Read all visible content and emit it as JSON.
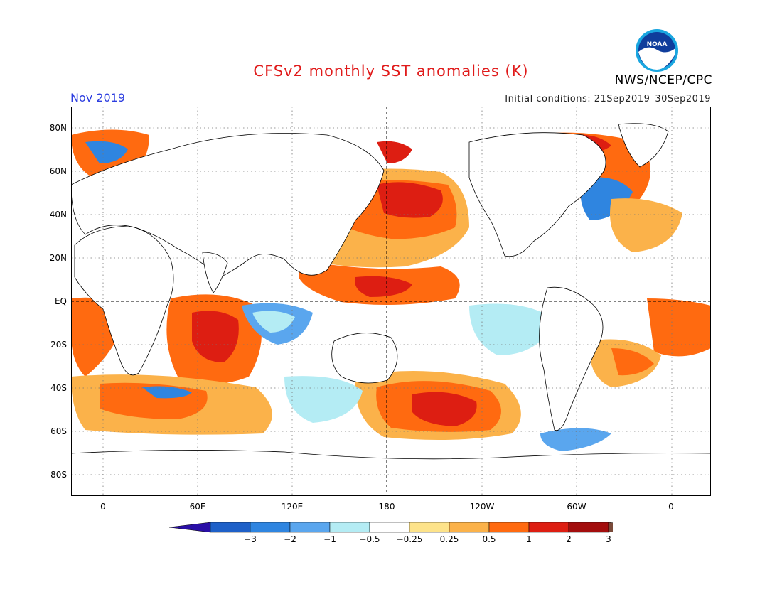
{
  "header": {
    "title": "CFSv2 monthly SST anomalies (K)",
    "month": "Nov 2019",
    "initial_conditions": "Initial conditions: 21Sep2019–30Sep2019",
    "agency": "NWS/NCEP/CPC",
    "logo_text": "NOAA"
  },
  "map": {
    "lat_labels": [
      "80N",
      "60N",
      "40N",
      "20N",
      "EQ",
      "20S",
      "40S",
      "60S",
      "80S"
    ],
    "lon_labels": [
      "0",
      "60E",
      "120E",
      "180",
      "120W",
      "60W",
      "0"
    ]
  },
  "colorbar": {
    "labels": [
      "−3",
      "−2",
      "−1",
      "−0.5",
      "−0.25",
      "0.25",
      "0.5",
      "1",
      "2",
      "3"
    ],
    "colors": {
      "below_m3": "#2a0fa6",
      "m3_m2": "#1e60c8",
      "m2_m1": "#2f85e0",
      "m1_m05": "#5aa6ee",
      "m05_m025": "#b4ecf4",
      "neutral": "#ffffff",
      "p025_p05": "#fde38a",
      "p05_p1": "#fbb24a",
      "p1_p2": "#ff6a10",
      "p2_p3": "#dd1e12",
      "above_p3": "#a30d0d",
      "over": "#7a4a3a"
    }
  }
}
